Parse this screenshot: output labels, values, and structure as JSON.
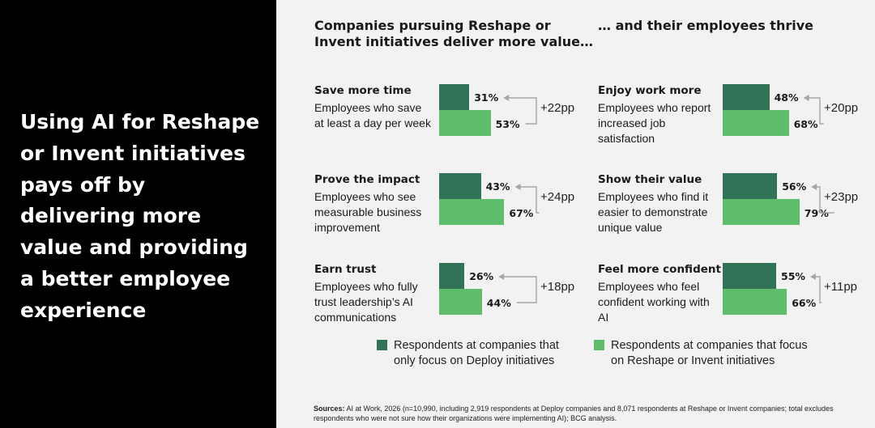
{
  "headline": "Using AI for Reshape or Invent initiatives pays off by delivering more value and providing a better employee experience",
  "heading_left": "Companies pursuing Reshape or Invent initiatives deliver more value…",
  "heading_right": "… and their employees thrive",
  "colors": {
    "deploy": "#317356",
    "reshape": "#5dbd6b",
    "arrow": "#a6a6a6"
  },
  "metrics": [
    {
      "title": "Save more time",
      "description": "Employees who save at least a day per week",
      "deploy": 31,
      "reshape": 53,
      "deploy_label": "31%",
      "reshape_label": "53%",
      "diff": "+22pp"
    },
    {
      "title": "Prove the impact",
      "description": "Employees who see measurable business improvement",
      "deploy": 43,
      "reshape": 67,
      "deploy_label": "43%",
      "reshape_label": "67%",
      "diff": "+24pp"
    },
    {
      "title": "Earn trust",
      "description": "Employees who fully trust leadership’s AI communications",
      "deploy": 26,
      "reshape": 44,
      "deploy_label": "26%",
      "reshape_label": "44%",
      "diff": "+18pp"
    },
    {
      "title": "Enjoy work more",
      "description": "Employees who report increased job satisfaction",
      "deploy": 48,
      "reshape": 68,
      "deploy_label": "48%",
      "reshape_label": "68%",
      "diff": "+20pp"
    },
    {
      "title": "Show their value",
      "description": "Employees who find it easier to demonstrate unique value",
      "deploy": 56,
      "reshape": 79,
      "deploy_label": "56%",
      "reshape_label": "79%",
      "diff": "+23pp"
    },
    {
      "title": "Feel more confident",
      "description": "Employees who feel confident working with AI",
      "deploy": 55,
      "reshape": 66,
      "deploy_label": "55%",
      "reshape_label": "66%",
      "diff": "+11pp"
    }
  ],
  "legend": {
    "deploy": "Respondents at companies that only focus on Deploy initiatives",
    "reshape": "Respondents at companies that focus on Reshape or Invent initiatives"
  },
  "sources": {
    "label": "Sources:",
    "text": "AI at Work, 2026 (n=10,990, including 2,919 respondents at Deploy companies and 8,071 respondents at Reshape or Invent companies; total excludes respondents who were not sure how their organizations were implementing AI); BCG analysis."
  },
  "chart_data": {
    "type": "bar",
    "orientation": "horizontal",
    "unit": "%",
    "categories": [
      "Save more time",
      "Prove the impact",
      "Earn trust",
      "Enjoy work more",
      "Show their value",
      "Feel more confident"
    ],
    "series": [
      {
        "name": "Respondents at companies that only focus on Deploy initiatives",
        "values": [
          31,
          43,
          26,
          48,
          56,
          55
        ]
      },
      {
        "name": "Respondents at companies that focus on Reshape or Invent initiatives",
        "values": [
          53,
          67,
          44,
          68,
          79,
          66
        ]
      }
    ],
    "annotations": [
      "+22pp",
      "+24pp",
      "+18pp",
      "+20pp",
      "+23pp",
      "+11pp"
    ],
    "grid": false,
    "legend_position": "bottom"
  }
}
